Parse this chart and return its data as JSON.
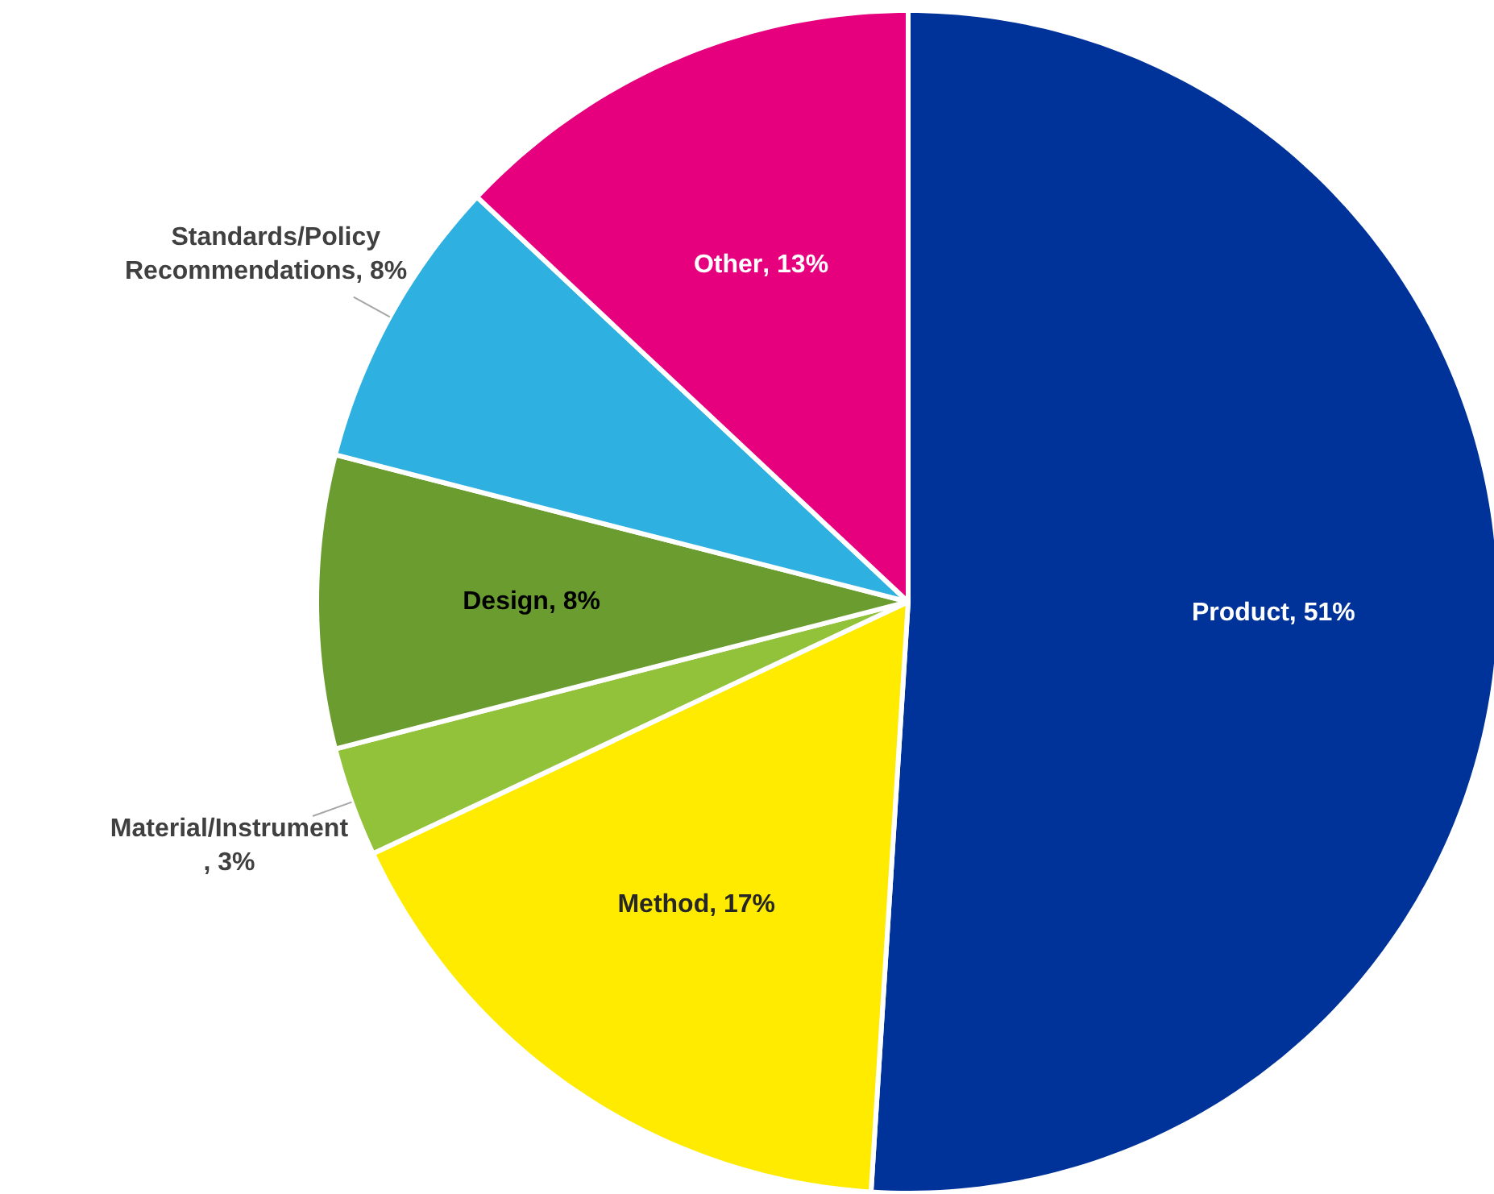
{
  "chart_data": {
    "type": "pie",
    "categories": [
      "Product",
      "Method",
      "Material/Instrument",
      "Design",
      "Standards/Policy Recommendations",
      "Other"
    ],
    "values": [
      51,
      17,
      3,
      8,
      8,
      13
    ],
    "colors": [
      "#003399",
      "#ffeb00",
      "#92c13a",
      "#6a9c2f",
      "#2eb0e0",
      "#e6007e"
    ],
    "value_labels": [
      ", 51%",
      ", 17%",
      ", 3%",
      " , 8%",
      ", 8%",
      ", 13%"
    ]
  }
}
